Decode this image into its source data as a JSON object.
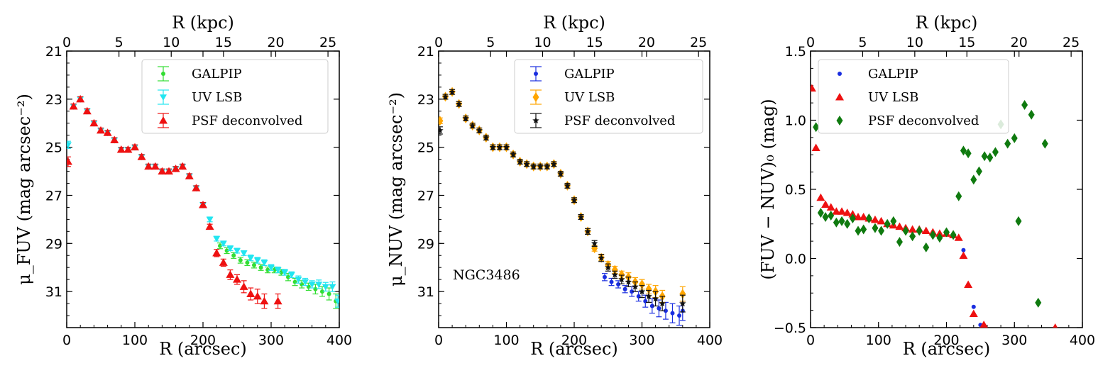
{
  "chart_data": [
    {
      "type": "scatter",
      "xlabel": "R (arcsec)",
      "top_xlabel": "R (kpc)",
      "ylabel": "μ_FUV (mag arcsec⁻²)",
      "xlim": [
        0,
        400
      ],
      "ylim": [
        32.5,
        21
      ],
      "x_ticks": [
        0,
        100,
        200,
        300,
        400
      ],
      "y_ticks": [
        21,
        23,
        25,
        27,
        29,
        31
      ],
      "top_ticks": [
        0,
        5,
        10,
        15,
        20,
        25
      ],
      "kpc_per_arcsec": 0.0652,
      "legend_position": "top-right",
      "series": [
        {
          "name": "GALPIP",
          "color": "#33dd33",
          "marker": "circle",
          "errorbars": true,
          "x": [
            225,
            235,
            245,
            255,
            265,
            275,
            285,
            295,
            305,
            315,
            325,
            335,
            345,
            355,
            365,
            375,
            385,
            395
          ],
          "y": [
            29.1,
            29.3,
            29.5,
            29.7,
            29.8,
            29.9,
            30.0,
            30.1,
            30.1,
            30.2,
            30.4,
            30.6,
            30.7,
            30.8,
            30.9,
            31.0,
            31.1,
            31.4
          ],
          "err": [
            0.12,
            0.12,
            0.12,
            0.12,
            0.12,
            0.12,
            0.12,
            0.12,
            0.12,
            0.12,
            0.15,
            0.15,
            0.15,
            0.15,
            0.2,
            0.2,
            0.25,
            0.3
          ]
        },
        {
          "name": "UV LSB",
          "color": "#22e5f0",
          "marker": "triangle-down",
          "errorbars": true,
          "x": [
            2,
            10,
            20,
            30,
            40,
            50,
            60,
            70,
            80,
            90,
            100,
            110,
            120,
            130,
            140,
            150,
            160,
            170,
            180,
            190,
            200,
            210,
            220,
            230,
            240,
            250,
            260,
            270,
            280,
            290,
            300,
            310,
            320,
            330,
            340,
            350,
            360,
            370,
            380,
            390,
            398
          ],
          "y": [
            24.9,
            23.3,
            23.0,
            23.5,
            24.0,
            24.3,
            24.4,
            24.7,
            25.1,
            25.1,
            25.0,
            25.4,
            25.8,
            25.8,
            26.0,
            26.0,
            25.9,
            25.8,
            26.2,
            26.7,
            27.4,
            28.0,
            28.8,
            29.0,
            29.2,
            29.3,
            29.4,
            29.6,
            29.7,
            29.8,
            30.0,
            30.1,
            30.2,
            30.3,
            30.5,
            30.6,
            30.7,
            30.7,
            30.8,
            30.8,
            31.4
          ],
          "err": [
            0.15,
            0.1,
            0.1,
            0.1,
            0.1,
            0.1,
            0.1,
            0.1,
            0.1,
            0.1,
            0.1,
            0.1,
            0.1,
            0.1,
            0.1,
            0.1,
            0.1,
            0.1,
            0.1,
            0.1,
            0.1,
            0.1,
            0.1,
            0.1,
            0.1,
            0.1,
            0.1,
            0.12,
            0.12,
            0.12,
            0.12,
            0.12,
            0.12,
            0.12,
            0.15,
            0.15,
            0.15,
            0.18,
            0.18,
            0.2,
            0.25
          ]
        },
        {
          "name": "PSF deconvolved",
          "color": "#ee1111",
          "marker": "triangle-up",
          "errorbars": true,
          "x": [
            2,
            10,
            20,
            30,
            40,
            50,
            60,
            70,
            80,
            90,
            100,
            110,
            120,
            130,
            140,
            150,
            160,
            170,
            180,
            190,
            200,
            210,
            220,
            230,
            240,
            250,
            260,
            270,
            280,
            290,
            310
          ],
          "y": [
            25.6,
            23.3,
            23.0,
            23.5,
            24.0,
            24.3,
            24.4,
            24.7,
            25.1,
            25.1,
            25.0,
            25.4,
            25.8,
            25.8,
            26.0,
            26.0,
            25.9,
            25.8,
            26.2,
            26.7,
            27.4,
            28.3,
            29.4,
            29.8,
            30.3,
            30.5,
            30.8,
            31.1,
            31.2,
            31.4,
            31.4
          ],
          "err": [
            0.2,
            0.1,
            0.1,
            0.1,
            0.1,
            0.1,
            0.1,
            0.1,
            0.1,
            0.1,
            0.1,
            0.1,
            0.1,
            0.1,
            0.1,
            0.1,
            0.1,
            0.1,
            0.1,
            0.1,
            0.1,
            0.1,
            0.15,
            0.15,
            0.2,
            0.2,
            0.25,
            0.25,
            0.3,
            0.3,
            0.3
          ]
        }
      ]
    },
    {
      "type": "scatter",
      "xlabel": "R (arcsec)",
      "top_xlabel": "R (kpc)",
      "ylabel": "μ_NUV (mag arcsec⁻²)",
      "annotation": "NGC3486",
      "xlim": [
        0,
        400
      ],
      "ylim": [
        32.5,
        21
      ],
      "x_ticks": [
        0,
        100,
        200,
        300,
        400
      ],
      "y_ticks": [
        21,
        23,
        25,
        27,
        29,
        31
      ],
      "top_ticks": [
        0,
        5,
        10,
        15,
        20,
        25
      ],
      "kpc_per_arcsec": 0.0652,
      "legend_position": "top-right",
      "series": [
        {
          "name": "GALPIP",
          "color": "#1a2ee0",
          "marker": "circle",
          "errorbars": true,
          "x": [
            245,
            255,
            265,
            275,
            285,
            295,
            305,
            315,
            325,
            335,
            345,
            355,
            360
          ],
          "y": [
            30.4,
            30.6,
            30.7,
            30.9,
            31.0,
            31.2,
            31.4,
            31.6,
            31.7,
            31.8,
            31.9,
            32.0,
            31.8
          ],
          "err": [
            0.15,
            0.15,
            0.15,
            0.15,
            0.2,
            0.2,
            0.25,
            0.3,
            0.35,
            0.35,
            0.4,
            0.4,
            0.4
          ]
        },
        {
          "name": "UV LSB",
          "color": "#ffa500",
          "marker": "diamond",
          "errorbars": true,
          "x": [
            2,
            10,
            20,
            30,
            40,
            50,
            60,
            70,
            80,
            90,
            100,
            110,
            120,
            130,
            140,
            150,
            160,
            170,
            180,
            190,
            200,
            210,
            220,
            230,
            240,
            250,
            260,
            270,
            280,
            290,
            300,
            310,
            320,
            330,
            360
          ],
          "y": [
            23.9,
            22.9,
            22.7,
            23.2,
            23.8,
            24.1,
            24.3,
            24.6,
            25.0,
            25.0,
            25.0,
            25.3,
            25.6,
            25.7,
            25.8,
            25.8,
            25.8,
            25.7,
            26.1,
            26.6,
            27.2,
            27.9,
            28.5,
            29.2,
            29.6,
            29.9,
            30.1,
            30.3,
            30.4,
            30.6,
            30.7,
            30.9,
            31.0,
            31.2,
            31.1
          ],
          "err": [
            0.12,
            0.1,
            0.1,
            0.1,
            0.1,
            0.1,
            0.1,
            0.1,
            0.1,
            0.1,
            0.1,
            0.1,
            0.1,
            0.1,
            0.1,
            0.1,
            0.1,
            0.1,
            0.1,
            0.1,
            0.1,
            0.1,
            0.12,
            0.12,
            0.12,
            0.15,
            0.15,
            0.15,
            0.18,
            0.18,
            0.2,
            0.2,
            0.25,
            0.25,
            0.3
          ]
        },
        {
          "name": "PSF deconvolved",
          "color": "#111111",
          "marker": "star",
          "errorbars": true,
          "x": [
            2,
            10,
            20,
            30,
            40,
            50,
            60,
            70,
            80,
            90,
            100,
            110,
            120,
            130,
            140,
            150,
            160,
            170,
            180,
            190,
            200,
            210,
            220,
            230,
            240,
            250,
            260,
            270,
            280,
            290,
            300,
            310,
            320,
            330,
            360
          ],
          "y": [
            24.3,
            22.9,
            22.7,
            23.2,
            23.8,
            24.1,
            24.3,
            24.6,
            25.0,
            25.0,
            25.0,
            25.3,
            25.6,
            25.7,
            25.8,
            25.8,
            25.8,
            25.7,
            26.1,
            26.6,
            27.2,
            27.9,
            28.5,
            29.0,
            29.6,
            30.0,
            30.3,
            30.5,
            30.6,
            30.8,
            31.0,
            31.2,
            31.3,
            31.5,
            31.5
          ],
          "err": [
            0.15,
            0.1,
            0.1,
            0.1,
            0.1,
            0.1,
            0.1,
            0.1,
            0.1,
            0.1,
            0.1,
            0.1,
            0.1,
            0.1,
            0.1,
            0.1,
            0.1,
            0.1,
            0.1,
            0.1,
            0.1,
            0.1,
            0.12,
            0.12,
            0.15,
            0.15,
            0.15,
            0.18,
            0.2,
            0.2,
            0.25,
            0.25,
            0.3,
            0.3,
            0.35
          ]
        }
      ]
    },
    {
      "type": "scatter",
      "xlabel": "R (arcsec)",
      "top_xlabel": "R (kpc)",
      "ylabel": "(FUV − NUV)₀ (mag)",
      "xlim": [
        0,
        400
      ],
      "ylim": [
        -0.5,
        1.5
      ],
      "x_ticks": [
        0,
        100,
        200,
        300,
        400
      ],
      "y_ticks": [
        -0.5,
        0.0,
        0.5,
        1.0,
        1.5
      ],
      "y_tick_labels": [
        "−0.5",
        "0.0",
        "0.5",
        "1.0",
        "1.5"
      ],
      "top_ticks": [
        0,
        5,
        10,
        15,
        20,
        25
      ],
      "kpc_per_arcsec": 0.0652,
      "legend_position": "top-left",
      "series": [
        {
          "name": "GALPIP",
          "color": "#1a2ee0",
          "marker": "circle",
          "errorbars": false,
          "x": [
            225,
            232,
            240,
            250
          ],
          "y": [
            0.06,
            -0.19,
            -0.35,
            -0.48
          ]
        },
        {
          "name": "UV LSB",
          "color": "#ee1111",
          "marker": "triangle-up",
          "errorbars": false,
          "x": [
            2,
            8,
            15,
            22,
            30,
            38,
            46,
            54,
            62,
            70,
            78,
            86,
            95,
            104,
            113,
            122,
            131,
            140,
            150,
            160,
            170,
            180,
            190,
            200,
            210,
            218,
            225,
            232,
            240,
            255,
            360
          ],
          "y": [
            1.23,
            0.8,
            0.44,
            0.39,
            0.37,
            0.34,
            0.34,
            0.33,
            0.32,
            0.3,
            0.3,
            0.29,
            0.28,
            0.27,
            0.25,
            0.24,
            0.23,
            0.22,
            0.21,
            0.21,
            0.2,
            0.19,
            0.18,
            0.18,
            0.17,
            0.15,
            0.02,
            -0.19,
            -0.4,
            -0.48,
            -0.5
          ]
        },
        {
          "name": "PSF deconvolved",
          "color": "#0f7a0f",
          "marker": "diamond",
          "errorbars": false,
          "x": [
            8,
            15,
            22,
            30,
            38,
            46,
            54,
            62,
            70,
            78,
            86,
            95,
            104,
            113,
            122,
            131,
            140,
            150,
            160,
            170,
            180,
            190,
            200,
            210,
            218,
            225,
            232,
            240,
            248,
            256,
            264,
            272,
            280,
            290,
            300,
            306,
            315,
            325,
            335,
            345
          ],
          "y": [
            0.95,
            0.33,
            0.3,
            0.31,
            0.26,
            0.27,
            0.25,
            0.29,
            0.2,
            0.21,
            0.29,
            0.22,
            0.2,
            0.25,
            0.27,
            0.12,
            0.2,
            0.16,
            0.2,
            0.08,
            0.17,
            0.15,
            0.19,
            0.17,
            0.45,
            0.78,
            0.76,
            0.57,
            0.63,
            0.74,
            0.73,
            0.77,
            0.97,
            0.83,
            0.87,
            0.27,
            1.11,
            1.04,
            -0.32,
            0.83
          ]
        }
      ]
    }
  ]
}
